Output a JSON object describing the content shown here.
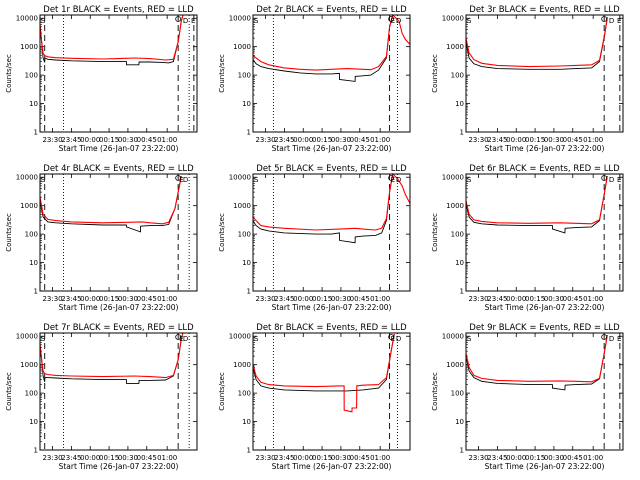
{
  "figure": {
    "ylabel": "Counts/sec",
    "xlabel": "Start Time (26-Jan-07 23:22:00)",
    "xticks": [
      "23:30",
      "23:45",
      "00:00",
      "00:15",
      "00:30",
      "00:45",
      "01:00"
    ],
    "yticks": [
      "1",
      "10",
      "100",
      "1000",
      "10000"
    ],
    "marker_labels": [
      "S",
      "D",
      "E"
    ]
  },
  "chart_data": [
    {
      "type": "line",
      "title": "Det 1r BLACK = Events, RED = LLD",
      "xlabel": "Start Time (26-Jan-07 23:22:00)",
      "ylabel": "Counts/sec",
      "xlim": [
        0,
        100
      ],
      "ylim": [
        1,
        13000
      ],
      "yscale": "log",
      "series": [
        {
          "color": "#000000",
          "x": [
            0,
            1,
            2,
            3,
            3.1,
            5,
            10,
            20,
            40,
            50,
            55,
            55.1,
            63,
            63.1,
            70,
            78,
            82,
            85,
            88,
            90,
            91
          ],
          "y": [
            6000,
            1500,
            400,
            280,
            400,
            360,
            340,
            320,
            300,
            300,
            300,
            230,
            230,
            290,
            290,
            280,
            270,
            300,
            1500,
            8000,
            13000
          ]
        },
        {
          "color": "#ff0000",
          "x": [
            0,
            1,
            2,
            3,
            5,
            10,
            20,
            40,
            50,
            60,
            70,
            80,
            85,
            88,
            90,
            91
          ],
          "y": [
            6000,
            1600,
            600,
            480,
            440,
            410,
            390,
            370,
            380,
            400,
            380,
            340,
            360,
            1500,
            8000,
            13000
          ]
        }
      ],
      "vlines": [
        {
          "x": 3,
          "style": "dashed"
        },
        {
          "x": 15,
          "style": "dotted"
        },
        {
          "x": 88,
          "style": "dashed"
        },
        {
          "x": 95,
          "style": "dotted"
        },
        {
          "x": 98,
          "style": "dashed"
        }
      ]
    },
    {
      "type": "line",
      "title": "Det 2r BLACK = Events, RED = LLD",
      "xlabel": "Start Time (26-Jan-07 23:22:00)",
      "ylabel": "Counts/sec",
      "xlim": [
        0,
        100
      ],
      "ylim": [
        1,
        13000
      ],
      "yscale": "log",
      "series": [
        {
          "color": "#000000",
          "x": [
            0,
            2,
            5,
            10,
            20,
            30,
            40,
            50,
            55,
            55.1,
            65,
            65.1,
            70,
            75,
            80,
            85,
            87,
            89
          ],
          "y": [
            350,
            250,
            200,
            170,
            140,
            120,
            110,
            110,
            115,
            70,
            60,
            90,
            95,
            100,
            150,
            400,
            5000,
            13000
          ]
        },
        {
          "color": "#ff0000",
          "x": [
            0,
            2,
            5,
            10,
            20,
            30,
            40,
            50,
            60,
            70,
            75,
            80,
            85,
            87,
            89,
            93,
            95,
            97,
            100
          ],
          "y": [
            500,
            400,
            300,
            230,
            180,
            160,
            150,
            160,
            170,
            160,
            155,
            200,
            450,
            5000,
            13000,
            8000,
            3000,
            1800,
            1200
          ]
        }
      ],
      "vlines": [
        {
          "x": 13,
          "style": "dotted"
        },
        {
          "x": 87,
          "style": "dashed"
        },
        {
          "x": 92,
          "style": "dotted"
        }
      ]
    },
    {
      "type": "line",
      "title": "Det 3r BLACK = Events, RED = LLD",
      "xlabel": "Start Time (26-Jan-07 23:22:00)",
      "ylabel": "Counts/sec",
      "xlim": [
        0,
        100
      ],
      "ylim": [
        1,
        13000
      ],
      "yscale": "log",
      "series": [
        {
          "color": "#000000",
          "x": [
            0,
            2,
            5,
            10,
            20,
            40,
            60,
            70,
            80,
            85,
            88,
            90
          ],
          "y": [
            1500,
            400,
            250,
            200,
            170,
            160,
            160,
            170,
            180,
            300,
            2000,
            10000
          ]
        },
        {
          "color": "#ff0000",
          "x": [
            0,
            2,
            5,
            10,
            20,
            40,
            60,
            70,
            80,
            85,
            88,
            90
          ],
          "y": [
            2000,
            600,
            350,
            260,
            220,
            200,
            210,
            220,
            230,
            330,
            2200,
            11000
          ]
        }
      ],
      "vlines": [
        {
          "x": 88,
          "style": "dashed"
        },
        {
          "x": 98,
          "style": "dashed"
        }
      ]
    },
    {
      "type": "line",
      "title": "Det 4r BLACK = Events, RED = LLD",
      "xlabel": "Start Time (26-Jan-07 23:22:00)",
      "ylabel": "Counts/sec",
      "xlim": [
        0,
        100
      ],
      "ylim": [
        1,
        13000
      ],
      "yscale": "log",
      "series": [
        {
          "color": "#000000",
          "x": [
            0,
            2,
            5,
            10,
            20,
            40,
            55,
            55.1,
            64,
            64.1,
            70,
            78,
            82,
            86,
            88,
            90
          ],
          "y": [
            1500,
            400,
            270,
            250,
            230,
            210,
            210,
            180,
            120,
            190,
            200,
            200,
            220,
            800,
            3000,
            11000
          ]
        },
        {
          "color": "#ff0000",
          "x": [
            0,
            2,
            5,
            10,
            20,
            40,
            55,
            65,
            70,
            78,
            82,
            86,
            88,
            90
          ],
          "y": [
            2000,
            500,
            330,
            300,
            270,
            250,
            260,
            270,
            250,
            230,
            260,
            800,
            3000,
            11000
          ]
        }
      ],
      "vlines": [
        {
          "x": 3,
          "style": "dashed"
        },
        {
          "x": 15,
          "style": "dotted"
        },
        {
          "x": 88,
          "style": "dashed"
        },
        {
          "x": 95,
          "style": "dotted"
        }
      ]
    },
    {
      "type": "line",
      "title": "Det 5r BLACK = Events, RED = LLD",
      "xlabel": "Start Time (26-Jan-07 23:22:00)",
      "ylabel": "Counts/sec",
      "xlim": [
        0,
        100
      ],
      "ylim": [
        1,
        13000
      ],
      "yscale": "log",
      "series": [
        {
          "color": "#000000",
          "x": [
            0,
            2,
            5,
            10,
            20,
            40,
            50,
            55,
            55.1,
            65,
            65.1,
            70,
            78,
            82,
            85,
            87,
            89
          ],
          "y": [
            300,
            200,
            150,
            130,
            110,
            100,
            100,
            110,
            60,
            50,
            80,
            85,
            90,
            110,
            300,
            3000,
            13000
          ]
        },
        {
          "color": "#ff0000",
          "x": [
            0,
            2,
            5,
            10,
            20,
            40,
            55,
            65,
            70,
            78,
            82,
            85,
            87,
            89,
            92,
            95,
            97,
            100
          ],
          "y": [
            400,
            300,
            200,
            180,
            160,
            140,
            150,
            160,
            150,
            140,
            160,
            350,
            3000,
            13000,
            9000,
            5000,
            2500,
            1200
          ]
        }
      ],
      "vlines": [
        {
          "x": 13,
          "style": "dotted"
        },
        {
          "x": 87,
          "style": "dashed"
        },
        {
          "x": 92,
          "style": "dotted"
        }
      ]
    },
    {
      "type": "line",
      "title": "Det 6r BLACK = Events, RED = LLD",
      "xlabel": "Start Time (26-Jan-07 23:22:00)",
      "ylabel": "Counts/sec",
      "xlim": [
        0,
        100
      ],
      "ylim": [
        1,
        13000
      ],
      "yscale": "log",
      "series": [
        {
          "color": "#000000",
          "x": [
            0,
            2,
            5,
            10,
            20,
            40,
            55,
            55.1,
            63,
            63.1,
            70,
            80,
            85,
            88,
            90
          ],
          "y": [
            1200,
            400,
            260,
            230,
            210,
            200,
            200,
            150,
            110,
            160,
            170,
            180,
            300,
            2500,
            11000
          ]
        },
        {
          "color": "#ff0000",
          "x": [
            0,
            2,
            5,
            10,
            20,
            40,
            60,
            70,
            80,
            85,
            88,
            90
          ],
          "y": [
            1500,
            500,
            320,
            280,
            250,
            240,
            250,
            240,
            230,
            320,
            2500,
            11000
          ]
        }
      ],
      "vlines": [
        {
          "x": 88,
          "style": "dashed"
        },
        {
          "x": 98,
          "style": "dashed"
        }
      ]
    },
    {
      "type": "line",
      "title": "Det 7r BLACK = Events, RED = LLD",
      "xlabel": "Start Time (26-Jan-07 23:22:00)",
      "ylabel": "Counts/sec",
      "xlim": [
        0,
        100
      ],
      "ylim": [
        1,
        13000
      ],
      "yscale": "log",
      "series": [
        {
          "color": "#000000",
          "x": [
            0,
            1,
            2,
            3,
            3.1,
            5,
            10,
            20,
            40,
            55,
            55.1,
            63,
            63.1,
            70,
            80,
            85,
            88,
            90,
            91
          ],
          "y": [
            5000,
            1500,
            400,
            250,
            350,
            350,
            340,
            320,
            300,
            300,
            220,
            220,
            280,
            280,
            290,
            400,
            1500,
            8000,
            13000
          ]
        },
        {
          "color": "#ff0000",
          "x": [
            0,
            1,
            2,
            3,
            5,
            10,
            20,
            40,
            60,
            70,
            80,
            85,
            88,
            90,
            91
          ],
          "y": [
            5500,
            1600,
            600,
            480,
            450,
            420,
            400,
            380,
            400,
            380,
            350,
            420,
            1500,
            8000,
            13000
          ]
        }
      ],
      "vlines": [
        {
          "x": 3,
          "style": "dashed"
        },
        {
          "x": 15,
          "style": "dotted"
        },
        {
          "x": 88,
          "style": "dashed"
        },
        {
          "x": 95,
          "style": "dotted"
        }
      ]
    },
    {
      "type": "line",
      "title": "Det 8r BLACK = Events, RED = LLD",
      "xlabel": "Start Time (26-Jan-07 23:22:00)",
      "ylabel": "Counts/sec",
      "xlim": [
        0,
        100
      ],
      "ylim": [
        1,
        13000
      ],
      "yscale": "log",
      "series": [
        {
          "color": "#000000",
          "x": [
            0,
            2,
            5,
            10,
            20,
            40,
            60,
            70,
            80,
            85,
            88,
            90
          ],
          "y": [
            800,
            300,
            180,
            150,
            130,
            120,
            120,
            130,
            150,
            300,
            3000,
            12000
          ]
        },
        {
          "color": "#ff0000",
          "x": [
            0,
            2,
            5,
            10,
            20,
            40,
            55,
            58,
            58.1,
            63,
            63.1,
            66,
            66.1,
            70,
            80,
            85,
            88,
            90
          ],
          "y": [
            1000,
            400,
            240,
            200,
            180,
            170,
            180,
            180,
            25,
            22,
            30,
            30,
            180,
            190,
            200,
            350,
            3000,
            12000
          ]
        }
      ],
      "vlines": [
        {
          "x": 13,
          "style": "dotted"
        },
        {
          "x": 87,
          "style": "dashed"
        },
        {
          "x": 92,
          "style": "dotted"
        }
      ]
    },
    {
      "type": "line",
      "title": "Det 9r BLACK = Events, RED = LLD",
      "xlabel": "Start Time (26-Jan-07 23:22:00)",
      "ylabel": "Counts/sec",
      "xlim": [
        0,
        100
      ],
      "ylim": [
        1,
        13000
      ],
      "yscale": "log",
      "series": [
        {
          "color": "#000000",
          "x": [
            0,
            2,
            5,
            10,
            20,
            40,
            55,
            55.1,
            63,
            63.1,
            70,
            80,
            85,
            88,
            90
          ],
          "y": [
            2000,
            600,
            350,
            260,
            220,
            200,
            200,
            150,
            130,
            190,
            200,
            210,
            320,
            2500,
            11000
          ]
        },
        {
          "color": "#ff0000",
          "x": [
            0,
            2,
            5,
            10,
            20,
            40,
            60,
            70,
            80,
            85,
            88,
            90
          ],
          "y": [
            2500,
            800,
            420,
            330,
            280,
            260,
            270,
            260,
            250,
            330,
            2500,
            11000
          ]
        }
      ],
      "vlines": [
        {
          "x": 88,
          "style": "dashed"
        },
        {
          "x": 98,
          "style": "dashed"
        }
      ]
    }
  ]
}
